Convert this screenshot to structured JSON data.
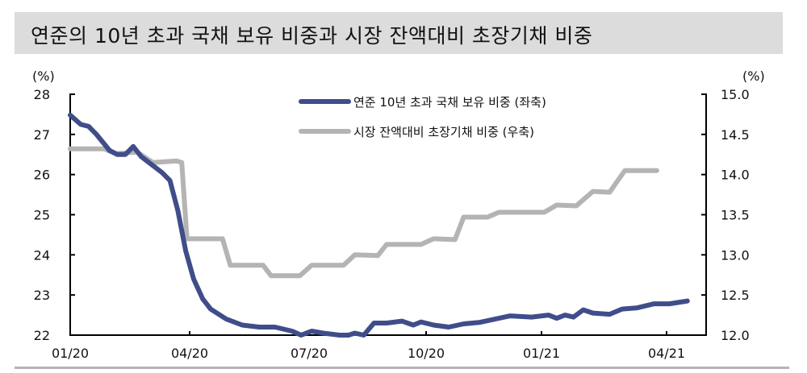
{
  "title": "연준의 10년 초과 국채 보유 비중과 시장 잔액대비 초장기채 비중",
  "chart_data": {
    "type": "line",
    "title": "연준의 10년 초과 국채 보유 비중과 시장 잔액대비 초장기채 비중",
    "y_left": {
      "unit": "(%)",
      "range": [
        22,
        28
      ],
      "ticks": [
        "22",
        "23",
        "24",
        "25",
        "26",
        "27",
        "28"
      ]
    },
    "y_right": {
      "unit": "(%)",
      "range": [
        12.0,
        15.0
      ],
      "ticks": [
        "12.0",
        "12.5",
        "13.0",
        "13.5",
        "14.0",
        "14.5",
        "15.0"
      ]
    },
    "x_ticks": [
      {
        "label": "01/20",
        "date": "2020-01-01"
      },
      {
        "label": "04/20",
        "date": "2020-04-01"
      },
      {
        "label": "07/20",
        "date": "2020-07-01"
      },
      {
        "label": "10/20",
        "date": "2020-10-01"
      },
      {
        "label": "01/21",
        "date": "2021-01-01"
      },
      {
        "label": "04/21",
        "date": "2021-04-01"
      }
    ],
    "grid": false,
    "legend_position": "top-right",
    "series": [
      {
        "name": "연준 10년 초과 국채 보유 비중 (좌축)",
        "axis": "left",
        "color": "#3f4d8a",
        "points": [
          [
            "2020-01-01",
            27.48
          ],
          [
            "2020-01-09",
            27.25
          ],
          [
            "2020-01-15",
            27.2
          ],
          [
            "2020-01-21",
            27.0
          ],
          [
            "2020-01-31",
            26.6
          ],
          [
            "2020-02-06",
            26.5
          ],
          [
            "2020-02-12",
            26.5
          ],
          [
            "2020-02-18",
            26.7
          ],
          [
            "2020-02-24",
            26.45
          ],
          [
            "2020-03-05",
            26.2
          ],
          [
            "2020-03-11",
            26.05
          ],
          [
            "2020-03-17",
            25.85
          ],
          [
            "2020-03-23",
            25.1
          ],
          [
            "2020-03-29",
            24.1
          ],
          [
            "2020-04-04",
            23.4
          ],
          [
            "2020-04-11",
            22.9
          ],
          [
            "2020-04-17",
            22.65
          ],
          [
            "2020-04-29",
            22.4
          ],
          [
            "2020-05-11",
            22.25
          ],
          [
            "2020-05-24",
            22.2
          ],
          [
            "2020-06-05",
            22.2
          ],
          [
            "2020-06-18",
            22.1
          ],
          [
            "2020-06-25",
            22.0
          ],
          [
            "2020-07-03",
            22.1
          ],
          [
            "2020-07-12",
            22.05
          ],
          [
            "2020-07-25",
            22.0
          ],
          [
            "2020-08-01",
            22.0
          ],
          [
            "2020-08-06",
            22.05
          ],
          [
            "2020-08-13",
            22.0
          ],
          [
            "2020-08-21",
            22.3
          ],
          [
            "2020-08-31",
            22.3
          ],
          [
            "2020-09-12",
            22.35
          ],
          [
            "2020-09-21",
            22.25
          ],
          [
            "2020-09-27",
            22.33
          ],
          [
            "2020-10-07",
            22.25
          ],
          [
            "2020-10-19",
            22.2
          ],
          [
            "2020-10-31",
            22.28
          ],
          [
            "2020-11-13",
            22.32
          ],
          [
            "2020-11-25",
            22.4
          ],
          [
            "2020-12-07",
            22.48
          ],
          [
            "2020-12-24",
            22.45
          ],
          [
            "2021-01-06",
            22.5
          ],
          [
            "2021-01-12",
            22.42
          ],
          [
            "2021-01-18",
            22.5
          ],
          [
            "2021-01-24",
            22.45
          ],
          [
            "2021-01-31",
            22.63
          ],
          [
            "2021-02-07",
            22.55
          ],
          [
            "2021-02-19",
            22.52
          ],
          [
            "2021-02-28",
            22.65
          ],
          [
            "2021-03-11",
            22.68
          ],
          [
            "2021-03-23",
            22.78
          ],
          [
            "2021-04-03",
            22.78
          ],
          [
            "2021-04-16",
            22.85
          ]
        ]
      },
      {
        "name": "시장 잔액대비 초장기채 비중 (우축)",
        "axis": "right",
        "color": "#b4b4b4",
        "points": [
          [
            "2020-01-01",
            14.32
          ],
          [
            "2020-01-27",
            14.32
          ],
          [
            "2020-02-05",
            14.26
          ],
          [
            "2020-02-21",
            14.28
          ],
          [
            "2020-03-04",
            14.15
          ],
          [
            "2020-03-22",
            14.17
          ],
          [
            "2020-03-26",
            14.15
          ],
          [
            "2020-03-30",
            13.2
          ],
          [
            "2020-04-22",
            13.2
          ],
          [
            "2020-04-26",
            13.2
          ],
          [
            "2020-05-02",
            12.87
          ],
          [
            "2020-05-27",
            12.87
          ],
          [
            "2020-06-02",
            12.74
          ],
          [
            "2020-06-24",
            12.74
          ],
          [
            "2020-07-03",
            12.87
          ],
          [
            "2020-07-28",
            12.87
          ],
          [
            "2020-08-06",
            13.0
          ],
          [
            "2020-08-24",
            12.99
          ],
          [
            "2020-08-31",
            13.13
          ],
          [
            "2020-09-27",
            13.13
          ],
          [
            "2020-10-07",
            13.2
          ],
          [
            "2020-10-24",
            13.19
          ],
          [
            "2020-10-31",
            13.47
          ],
          [
            "2020-11-19",
            13.47
          ],
          [
            "2020-11-28",
            13.53
          ],
          [
            "2021-01-03",
            13.53
          ],
          [
            "2021-01-12",
            13.62
          ],
          [
            "2021-01-26",
            13.61
          ],
          [
            "2021-02-07",
            13.79
          ],
          [
            "2021-02-19",
            13.78
          ],
          [
            "2021-03-02",
            14.05
          ],
          [
            "2021-03-25",
            14.05
          ]
        ]
      }
    ]
  }
}
